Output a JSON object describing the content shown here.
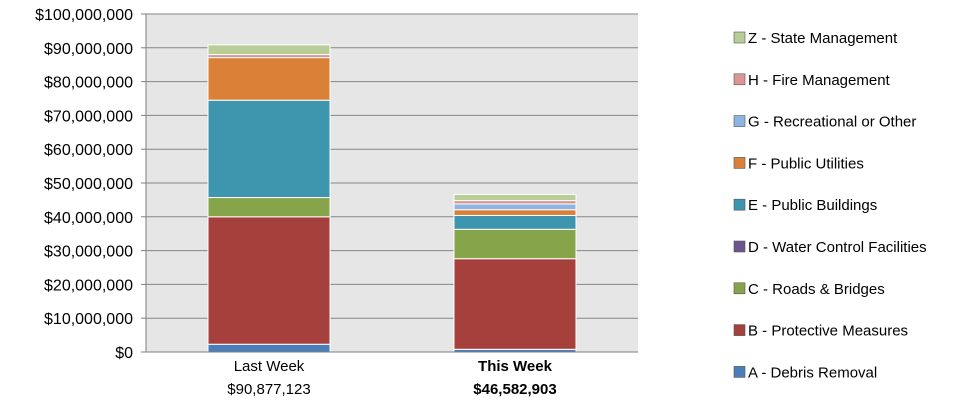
{
  "chart_data": {
    "type": "bar",
    "stacked": true,
    "ylim": [
      0,
      100000000
    ],
    "yticks": [
      0,
      10000000,
      20000000,
      30000000,
      40000000,
      50000000,
      60000000,
      70000000,
      80000000,
      90000000,
      100000000
    ],
    "ytick_labels": [
      "$0",
      "$10,000,000",
      "$20,000,000",
      "$30,000,000",
      "$40,000,000",
      "$50,000,000",
      "$60,000,000",
      "$70,000,000",
      "$80,000,000",
      "$90,000,000",
      "$100,000,000"
    ],
    "grid": true,
    "plot_background": "#e6e6e6",
    "legend_position": "right",
    "categories": [
      "Last Week",
      "This Week"
    ],
    "category_totals": [
      "$90,877,123",
      "$46,582,903"
    ],
    "bold_category": "This Week",
    "series": [
      {
        "name": "A - Debris Removal",
        "color": "#4a7ebb",
        "values": [
          2300000,
          800000
        ]
      },
      {
        "name": "B - Protective Measures",
        "color": "#a5403d",
        "values": [
          37700000,
          26800000
        ]
      },
      {
        "name": "C - Roads & Bridges",
        "color": "#86a44a",
        "values": [
          5700000,
          8700000
        ]
      },
      {
        "name": "D - Water Control Facilities",
        "color": "#6e548d",
        "values": [
          0,
          0
        ]
      },
      {
        "name": "E - Public Buildings",
        "color": "#3d96ae",
        "values": [
          28800000,
          4100000
        ]
      },
      {
        "name": "F - Public Utilities",
        "color": "#da8137",
        "values": [
          12600000,
          1700000
        ]
      },
      {
        "name": "G - Recreational or Other",
        "color": "#8eb4e3",
        "values": [
          0,
          1700000
        ]
      },
      {
        "name": "H - Fire Management",
        "color": "#d99694",
        "values": [
          900000,
          1000000
        ]
      },
      {
        "name": "Z - State Management",
        "color": "#b9cd96",
        "values": [
          2877123,
          1782903
        ]
      }
    ]
  }
}
